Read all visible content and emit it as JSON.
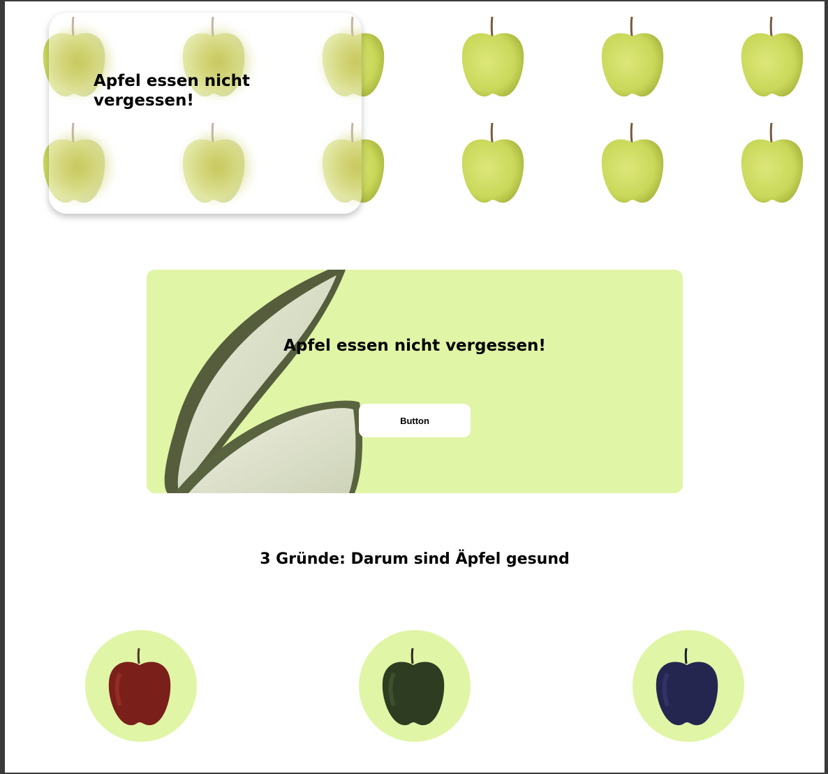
{
  "glass_card": {
    "title": "Apfel essen nicht vergessen!"
  },
  "hero": {
    "title": "Apfel essen nicht vergessen!",
    "button_label": "Button",
    "background_color": "#e0f5a6"
  },
  "reasons": {
    "title": "3 Gründe: Darum sind Äpfel gesund",
    "items": [
      {
        "icon": "red-apple-icon",
        "color": "#7a1f1a"
      },
      {
        "icon": "green-apple-icon",
        "color": "#2e3d22"
      },
      {
        "icon": "blue-apple-icon",
        "color": "#252650"
      }
    ]
  },
  "colors": {
    "accent": "#e0f5a6",
    "apple_yellow": "#c9d85a"
  }
}
